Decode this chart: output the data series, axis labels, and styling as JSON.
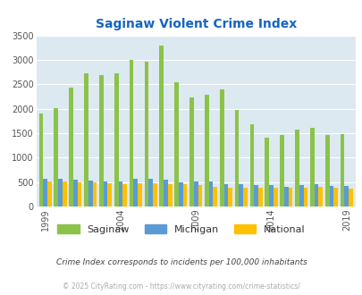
{
  "title": "Saginaw Violent Crime Index",
  "years": [
    1999,
    2000,
    2001,
    2002,
    2003,
    2004,
    2005,
    2006,
    2007,
    2008,
    2009,
    2010,
    2011,
    2012,
    2013,
    2014,
    2015,
    2016,
    2017,
    2018,
    2019
  ],
  "saginaw": [
    1900,
    2020,
    2430,
    2730,
    2680,
    2730,
    3000,
    2970,
    3300,
    2540,
    2230,
    2290,
    2390,
    1970,
    1690,
    1400,
    1470,
    1570,
    1610,
    1460,
    1480
  ],
  "michigan": [
    565,
    560,
    555,
    530,
    510,
    505,
    560,
    560,
    555,
    500,
    505,
    505,
    460,
    455,
    430,
    430,
    410,
    440,
    460,
    415,
    415
  ],
  "national": [
    505,
    510,
    500,
    495,
    475,
    465,
    475,
    480,
    465,
    455,
    435,
    405,
    390,
    385,
    380,
    375,
    375,
    390,
    395,
    375,
    370
  ],
  "saginaw_color": "#8bc34a",
  "michigan_color": "#5b9bd5",
  "national_color": "#ffc000",
  "bg_color": "#dce9f0",
  "title_color": "#1565c0",
  "subtitle": "Crime Index corresponds to incidents per 100,000 inhabitants",
  "subtitle_color": "#444444",
  "footer": "© 2025 CityRating.com - https://www.cityrating.com/crime-statistics/",
  "footer_color": "#aaaaaa",
  "ylim": [
    0,
    3500
  ],
  "yticks": [
    0,
    500,
    1000,
    1500,
    2000,
    2500,
    3000,
    3500
  ],
  "xlabel_ticks": [
    1999,
    2004,
    2009,
    2014,
    2019
  ]
}
